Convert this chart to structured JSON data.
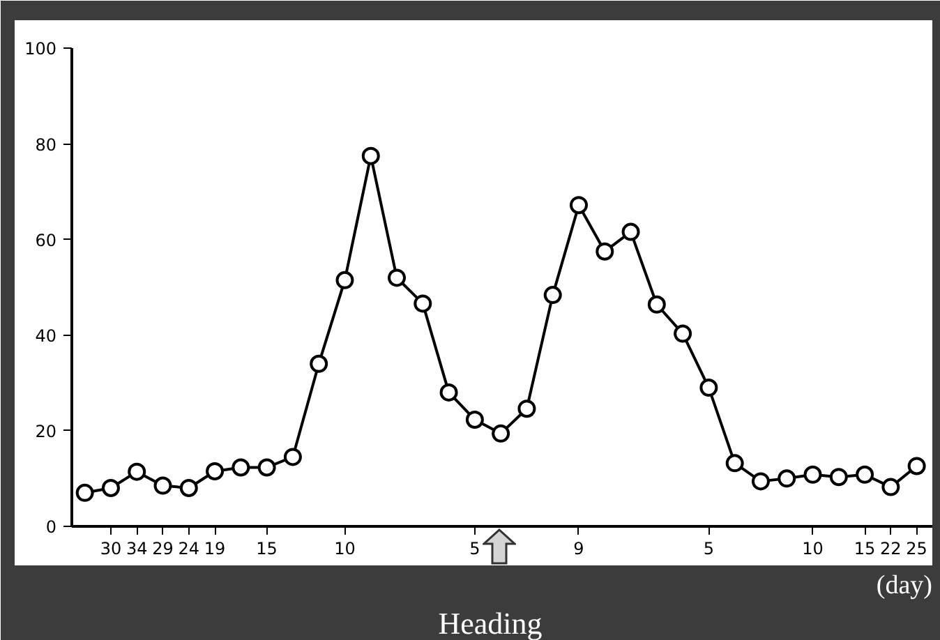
{
  "chart_data": {
    "type": "line",
    "xlabel": "(day)",
    "annotations": [
      "Heading"
    ],
    "categories": [
      null,
      "30",
      "34",
      "29",
      "24",
      "19",
      null,
      "15",
      null,
      null,
      "10",
      null,
      null,
      null,
      null,
      "5",
      null,
      null,
      null,
      "9",
      null,
      null,
      null,
      null,
      "5",
      null,
      null,
      null,
      "10",
      null,
      "15",
      "22",
      "25"
    ],
    "series": [
      {
        "color": "#000000",
        "values": [
          7,
          8,
          11.4,
          8.5,
          8,
          11.5,
          12.3,
          12.3,
          14.5,
          34,
          51.5,
          77.5,
          52,
          46.6,
          28,
          22.3,
          19.4,
          24.6,
          48.4,
          67.2,
          57.5,
          61.6,
          46.4,
          40.3,
          29,
          13.2,
          9.4,
          10,
          10.8,
          10.3,
          10.8,
          8.2,
          12.6
        ]
      }
    ],
    "ylim": [
      0,
      100
    ],
    "yticks": [
      0,
      20,
      40,
      60,
      80,
      100
    ],
    "marker": "circle",
    "line_style": "solid",
    "grid": false
  }
}
